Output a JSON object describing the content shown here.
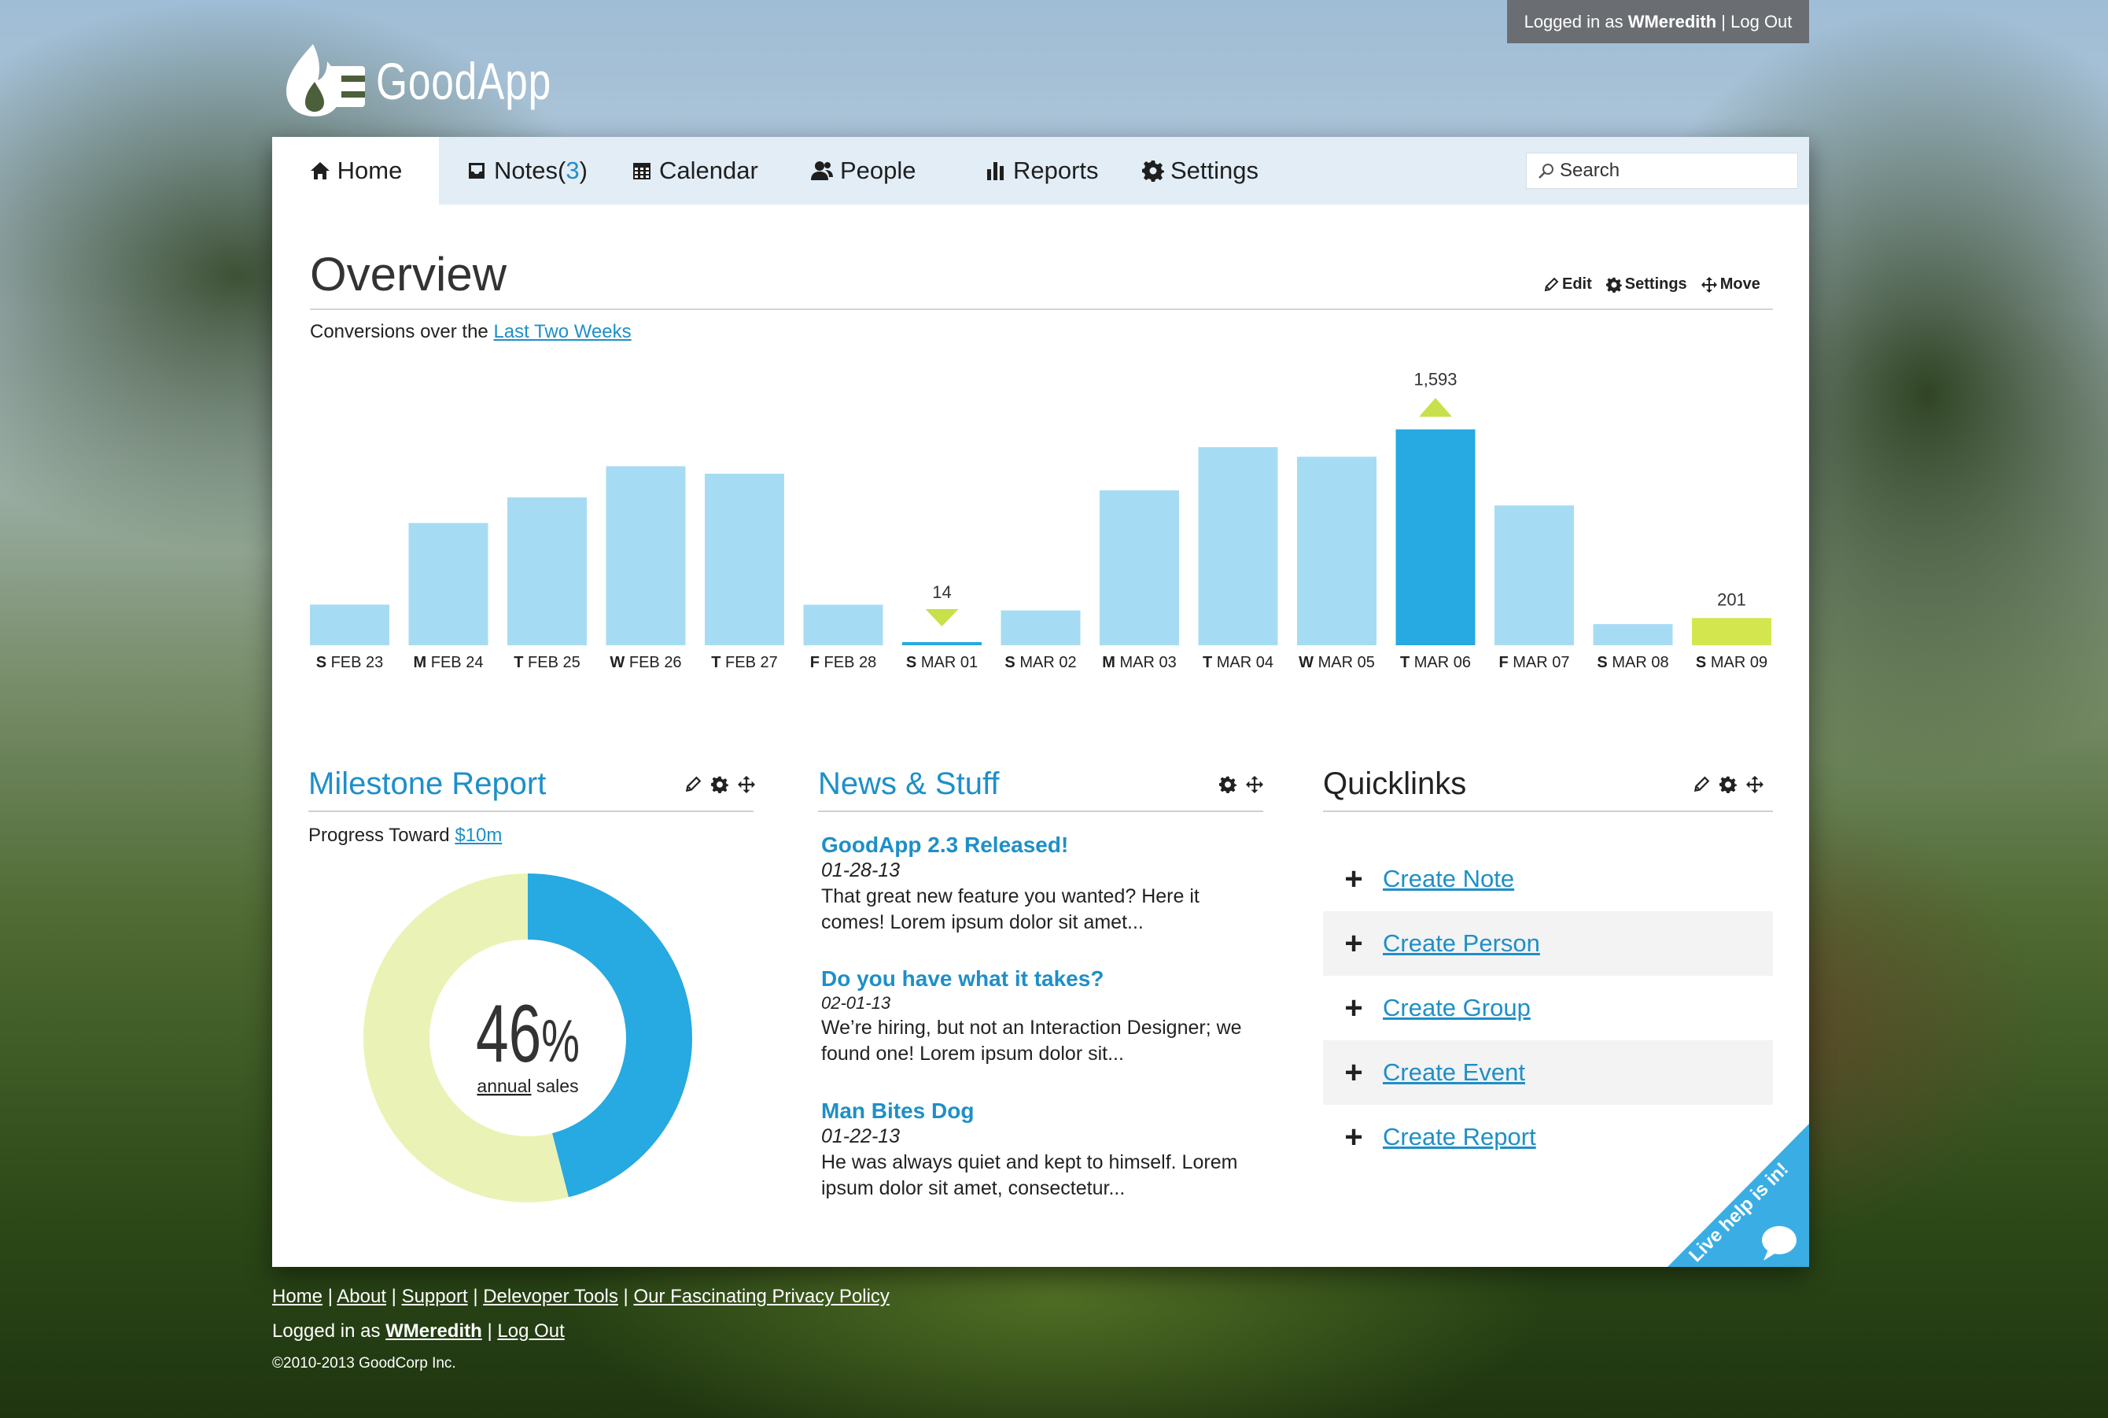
{
  "top_bar": {
    "logged_in_prefix": "Logged in as",
    "username": "WMeredith",
    "separator": "|",
    "logout": "Log Out"
  },
  "logo": {
    "text": "GoodApp"
  },
  "nav": {
    "home": "Home",
    "notes": "Notes",
    "notes_count_open": "(",
    "notes_count": "3",
    "notes_count_close": ")",
    "calendar": "Calendar",
    "people": "People",
    "reports": "Reports",
    "settings": "Settings",
    "search_placeholder": "Search"
  },
  "overview": {
    "title": "Overview",
    "actions": {
      "edit": "Edit",
      "settings": "Settings",
      "move": "Move"
    },
    "subtitle_prefix": "Conversions over the",
    "subtitle_link": "Last Two Weeks"
  },
  "chart_data": {
    "type": "bar",
    "categories": [
      {
        "day": "S",
        "date": "FEB 23"
      },
      {
        "day": "M",
        "date": "FEB 24"
      },
      {
        "day": "T",
        "date": "FEB 25"
      },
      {
        "day": "W",
        "date": "FEB 26"
      },
      {
        "day": "T",
        "date": "FEB 27"
      },
      {
        "day": "F",
        "date": "FEB 28"
      },
      {
        "day": "S",
        "date": "MAR 01"
      },
      {
        "day": "S",
        "date": "MAR 02"
      },
      {
        "day": "M",
        "date": "MAR 03"
      },
      {
        "day": "T",
        "date": "MAR 04"
      },
      {
        "day": "W",
        "date": "MAR 05"
      },
      {
        "day": "T",
        "date": "MAR 06"
      },
      {
        "day": "F",
        "date": "MAR 07"
      },
      {
        "day": "S",
        "date": "MAR 08"
      },
      {
        "day": "S",
        "date": "MAR 09"
      }
    ],
    "values": [
      300,
      902,
      1091,
      1321,
      1266,
      299,
      14,
      257,
      1143,
      1462,
      1391,
      1593,
      1032,
      156,
      201
    ],
    "highlights": [
      {
        "index": 6,
        "label": "14",
        "marker": "down",
        "bar_color": "#27a9e1",
        "marker_color": "#c8e04a"
      },
      {
        "index": 11,
        "label": "1,593",
        "marker": "up",
        "bar_color": "#27a9e1",
        "marker_color": "#c8e04a"
      },
      {
        "index": 14,
        "label": "201",
        "marker": "none",
        "bar_color": "#d3e64e"
      }
    ],
    "bar_color": "#a6dcf3",
    "ylim": [
      0,
      1800
    ]
  },
  "milestone": {
    "title": "Milestone Report",
    "progress_prefix": "Progress Toward",
    "progress_link": "$10m",
    "percent": 46,
    "percent_text": "46",
    "percent_sign": "%",
    "sub_link": "annual",
    "sub_text": "sales",
    "colors": {
      "done": "#27a9e1",
      "remaining": "#eaf3b5"
    }
  },
  "news": {
    "title": "News & Stuff",
    "items": [
      {
        "headline": "GoodApp 2.3 Released!",
        "date": "01-28-13",
        "body": "That great new feature you wanted? Here it comes! Lorem ipsum dolor sit amet..."
      },
      {
        "headline": "Do you have what it takes?",
        "date": "02-01-13",
        "body": "We’re hiring, but not an Interaction Designer; we found one! Lorem ipsum dolor sit..."
      },
      {
        "headline": "Man Bites Dog",
        "date": "01-22-13",
        "body": "He was always quiet and kept to himself. Lorem ipsum dolor sit amet, consectetur..."
      }
    ]
  },
  "quicklinks": {
    "title": "Quicklinks",
    "plus": "+",
    "items": [
      "Create Note",
      "Create Person",
      "Create Group",
      "Create Event",
      "Create Report"
    ]
  },
  "live_help": {
    "text": "Live help is in!",
    "color": "#3aaee4"
  },
  "footer": {
    "links": [
      "Home",
      "About",
      "Support",
      "Delevoper Tools",
      "Our Fascinating Privacy Policy"
    ],
    "separator": "|",
    "logged_in_prefix": "Logged in as",
    "username": "WMeredith",
    "logout": "Log Out",
    "copyright": "©2010-2013 GoodCorp Inc."
  }
}
